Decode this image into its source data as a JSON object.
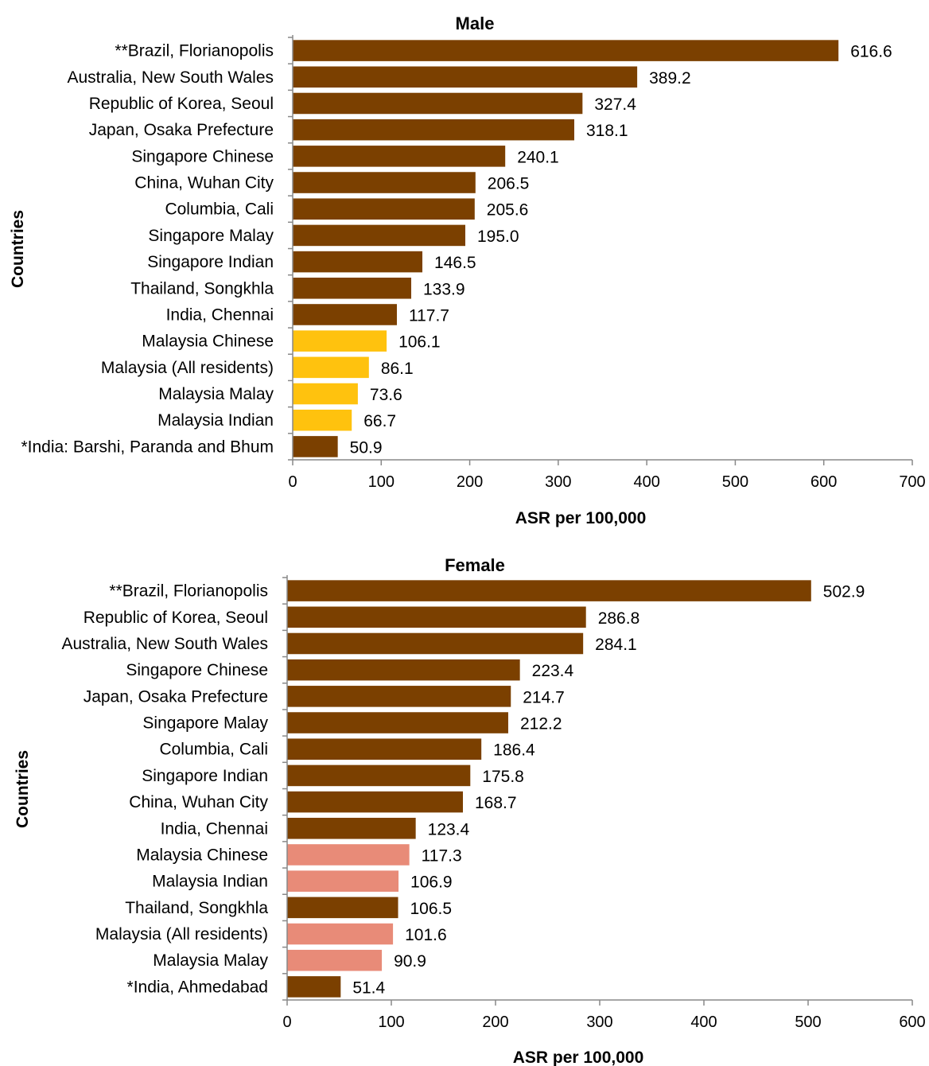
{
  "chart_data": [
    {
      "type": "bar",
      "orientation": "horizontal",
      "title": "Male",
      "xlabel": "ASR per 100,000",
      "ylabel": "Countries",
      "xlim": [
        0,
        700
      ],
      "xticks": [
        0,
        100,
        200,
        300,
        400,
        500,
        600,
        700
      ],
      "grid": false,
      "categories": [
        "**Brazil, Florianopolis",
        "Australia, New South Wales",
        "Republic of Korea, Seoul",
        "Japan, Osaka Prefecture",
        "Singapore Chinese",
        "China, Wuhan City",
        "Columbia, Cali",
        "Singapore Malay",
        "Singapore Indian",
        "Thailand, Songkhla",
        "India, Chennai",
        "Malaysia Chinese",
        "Malaysia (All residents)",
        "Malaysia Malay",
        "Malaysia Indian",
        "*India: Barshi, Paranda and Bhum"
      ],
      "values": [
        616.6,
        389.2,
        327.4,
        318.1,
        240.1,
        206.5,
        205.6,
        195.0,
        146.5,
        133.9,
        117.7,
        106.1,
        86.1,
        73.6,
        66.7,
        50.9
      ],
      "value_labels": [
        "616.6",
        "389.2",
        "327.4",
        "318.1",
        "240.1",
        "206.5",
        "205.6",
        "195.0",
        "146.5",
        "133.9",
        "117.7",
        "106.1",
        "86.1",
        "73.6",
        "66.7",
        "50.9"
      ],
      "colors": {
        "default": "#7B4000",
        "highlight": "#FFC20E"
      },
      "highlight_categories": [
        "Malaysia Chinese",
        "Malaysia (All residents)",
        "Malaysia Malay",
        "Malaysia Indian"
      ]
    },
    {
      "type": "bar",
      "orientation": "horizontal",
      "title": "Female",
      "xlabel": "ASR per 100,000",
      "ylabel": "Countries",
      "xlim": [
        0,
        600
      ],
      "xticks": [
        0,
        100,
        200,
        300,
        400,
        500,
        600
      ],
      "grid": false,
      "categories": [
        "**Brazil, Florianopolis",
        "Republic of Korea, Seoul",
        "Australia, New South Wales",
        "Singapore Chinese",
        "Japan, Osaka Prefecture",
        "Singapore Malay",
        "Columbia, Cali",
        "Singapore Indian",
        "China, Wuhan City",
        "India, Chennai",
        "Malaysia Chinese",
        "Malaysia Indian",
        "Thailand, Songkhla",
        "Malaysia (All residents)",
        "Malaysia Malay",
        "*India, Ahmedabad"
      ],
      "values": [
        502.9,
        286.8,
        284.1,
        223.4,
        214.7,
        212.2,
        186.4,
        175.8,
        168.7,
        123.4,
        117.3,
        106.9,
        106.5,
        101.6,
        90.9,
        51.4
      ],
      "value_labels": [
        "502.9",
        "286.8",
        "284.1",
        "223.4",
        "214.7",
        "212.2",
        "186.4",
        "175.8",
        "168.7",
        "123.4",
        "117.3",
        "106.9",
        "106.5",
        "101.6",
        "90.9",
        "51.4"
      ],
      "colors": {
        "default": "#7B4000",
        "highlight": "#E88B78"
      },
      "highlight_categories": [
        "Malaysia Chinese",
        "Malaysia Indian",
        "Malaysia (All residents)",
        "Malaysia Malay"
      ]
    }
  ]
}
